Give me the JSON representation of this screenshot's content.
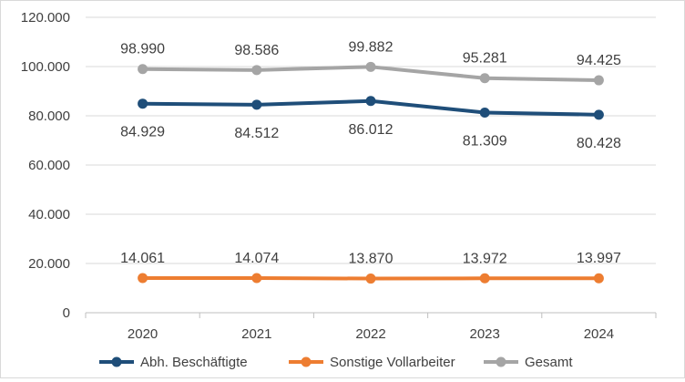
{
  "chart_data": {
    "type": "line",
    "title": "",
    "xlabel": "",
    "ylabel": "",
    "categories": [
      "2020",
      "2021",
      "2022",
      "2023",
      "2024"
    ],
    "ylim": [
      0,
      120000
    ],
    "yticks": [
      0,
      20000,
      40000,
      60000,
      80000,
      100000,
      120000
    ],
    "ytick_labels": [
      "0",
      "20.000",
      "40.000",
      "60.000",
      "80.000",
      "100.000",
      "120.000"
    ],
    "grid": true,
    "legend_position": "bottom",
    "series": [
      {
        "name": "Abh. Beschäftigte",
        "color": "#1f4e79",
        "values": [
          84929,
          84512,
          86012,
          81309,
          80428
        ],
        "labels": [
          "84.929",
          "84.512",
          "86.012",
          "81.309",
          "80.428"
        ],
        "label_position": "below"
      },
      {
        "name": "Sonstige Vollarbeiter",
        "color": "#ed7d31",
        "values": [
          14061,
          14074,
          13870,
          13972,
          13997
        ],
        "labels": [
          "14.061",
          "14.074",
          "13.870",
          "13.972",
          "13.997"
        ],
        "label_position": "above"
      },
      {
        "name": "Gesamt",
        "color": "#a5a5a5",
        "values": [
          98990,
          98586,
          99882,
          95281,
          94425
        ],
        "labels": [
          "98.990",
          "98.586",
          "99.882",
          "95.281",
          "94.425"
        ],
        "label_position": "above"
      }
    ]
  }
}
